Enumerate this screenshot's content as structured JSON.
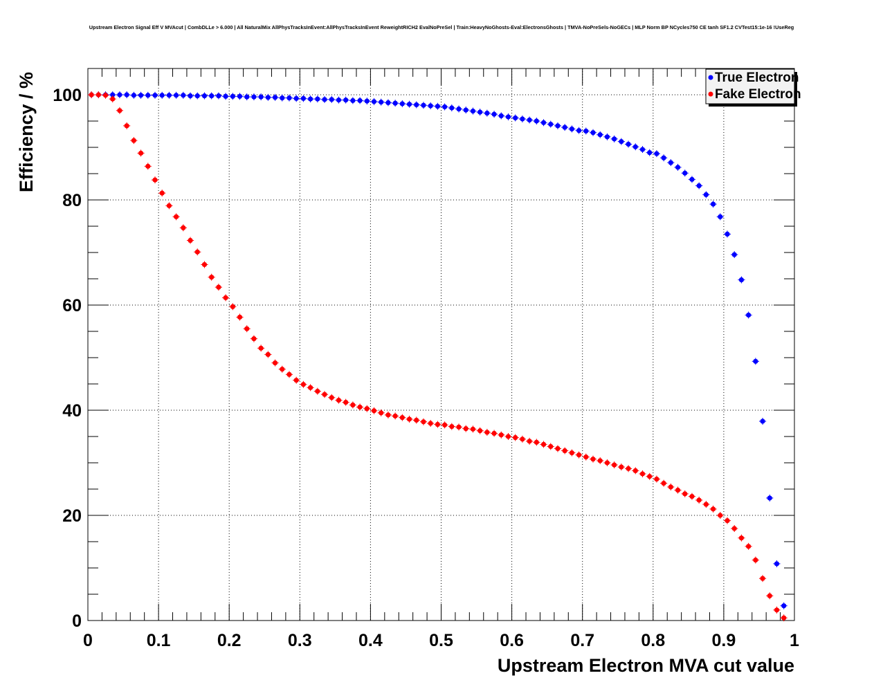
{
  "chart_data": {
    "type": "scatter",
    "title": "Upstream Electron Signal Eff V MVAcut | CombDLLe > 6.000 | All NaturalMix AllPhysTracksInEvent:AllPhysTracksInEvent ReweightRICH2 EvalNoPreSel | Train:HeavyNoGhosts-Eval:ElectronsGhosts | TMVA-NoPreSels-NoGECs | MLP Norm BP NCycles750 CE tanh SF1.2 CVTest15:1e-16 !UseReg",
    "xlabel": "Upstream Electron MVA cut value",
    "ylabel": "Efficiency / %",
    "xlim": [
      0,
      1
    ],
    "ylim": [
      0,
      105
    ],
    "xticks": [
      "0",
      "0.1",
      "0.2",
      "0.3",
      "0.4",
      "0.5",
      "0.6",
      "0.7",
      "0.8",
      "0.9",
      "1"
    ],
    "yticks": [
      "0",
      "20",
      "40",
      "60",
      "80",
      "100"
    ],
    "grid": true,
    "legend_position": "top-right",
    "x_start": 0.005,
    "x_step": 0.01,
    "series": [
      {
        "name": "True Electron",
        "color": "#0000ff",
        "values": [
          100,
          100,
          100,
          100,
          100,
          100,
          99.9,
          99.9,
          99.9,
          99.9,
          99.9,
          99.9,
          99.9,
          99.9,
          99.8,
          99.8,
          99.8,
          99.8,
          99.8,
          99.7,
          99.7,
          99.7,
          99.6,
          99.6,
          99.6,
          99.5,
          99.5,
          99.4,
          99.4,
          99.3,
          99.3,
          99.2,
          99.2,
          99.1,
          99.1,
          99.0,
          99.0,
          98.9,
          98.9,
          98.8,
          98.7,
          98.6,
          98.5,
          98.4,
          98.3,
          98.2,
          98.1,
          98.0,
          97.9,
          97.8,
          97.7,
          97.5,
          97.3,
          97.1,
          96.9,
          96.7,
          96.5,
          96.3,
          96.0,
          95.8,
          95.6,
          95.4,
          95.2,
          95.0,
          94.7,
          94.4,
          94.1,
          93.8,
          93.5,
          93.2,
          93.1,
          92.8,
          92.4,
          92.0,
          91.6,
          91.1,
          90.6,
          90.1,
          89.6,
          89.0,
          88.8,
          88.0,
          87.1,
          86.2,
          85.1,
          83.9,
          82.7,
          81.0,
          79.2,
          76.8,
          73.5,
          69.6,
          64.8,
          58.1,
          49.3,
          37.9,
          23.3,
          10.8,
          2.8
        ]
      },
      {
        "name": "Fake Electron",
        "color": "#ff0000",
        "values": [
          100,
          100,
          99.9,
          99.2,
          97.0,
          94.1,
          91.3,
          88.9,
          86.4,
          83.8,
          81.3,
          78.9,
          76.8,
          74.7,
          72.3,
          70.1,
          67.7,
          65.3,
          63.4,
          61.4,
          59.7,
          57.7,
          55.5,
          53.6,
          51.8,
          50.6,
          49.0,
          47.8,
          46.8,
          45.7,
          44.9,
          44.3,
          43.6,
          43.0,
          42.4,
          41.9,
          41.5,
          41.0,
          40.6,
          40.3,
          39.9,
          39.5,
          39.1,
          38.9,
          38.6,
          38.3,
          38.1,
          37.8,
          37.5,
          37.3,
          37.2,
          36.9,
          36.8,
          36.5,
          36.4,
          36.1,
          35.8,
          35.6,
          35.3,
          35.0,
          34.8,
          34.5,
          34.1,
          33.9,
          33.5,
          33.1,
          32.7,
          32.3,
          31.9,
          31.5,
          31.1,
          30.7,
          30.4,
          30.0,
          29.6,
          29.2,
          28.9,
          28.5,
          27.9,
          27.4,
          26.9,
          26.1,
          25.4,
          24.8,
          24.1,
          23.6,
          22.9,
          22.1,
          21.2,
          20.0,
          19.0,
          17.5,
          15.7,
          14.1,
          11.5,
          8.0,
          4.7,
          2.0,
          0.5
        ]
      }
    ]
  }
}
